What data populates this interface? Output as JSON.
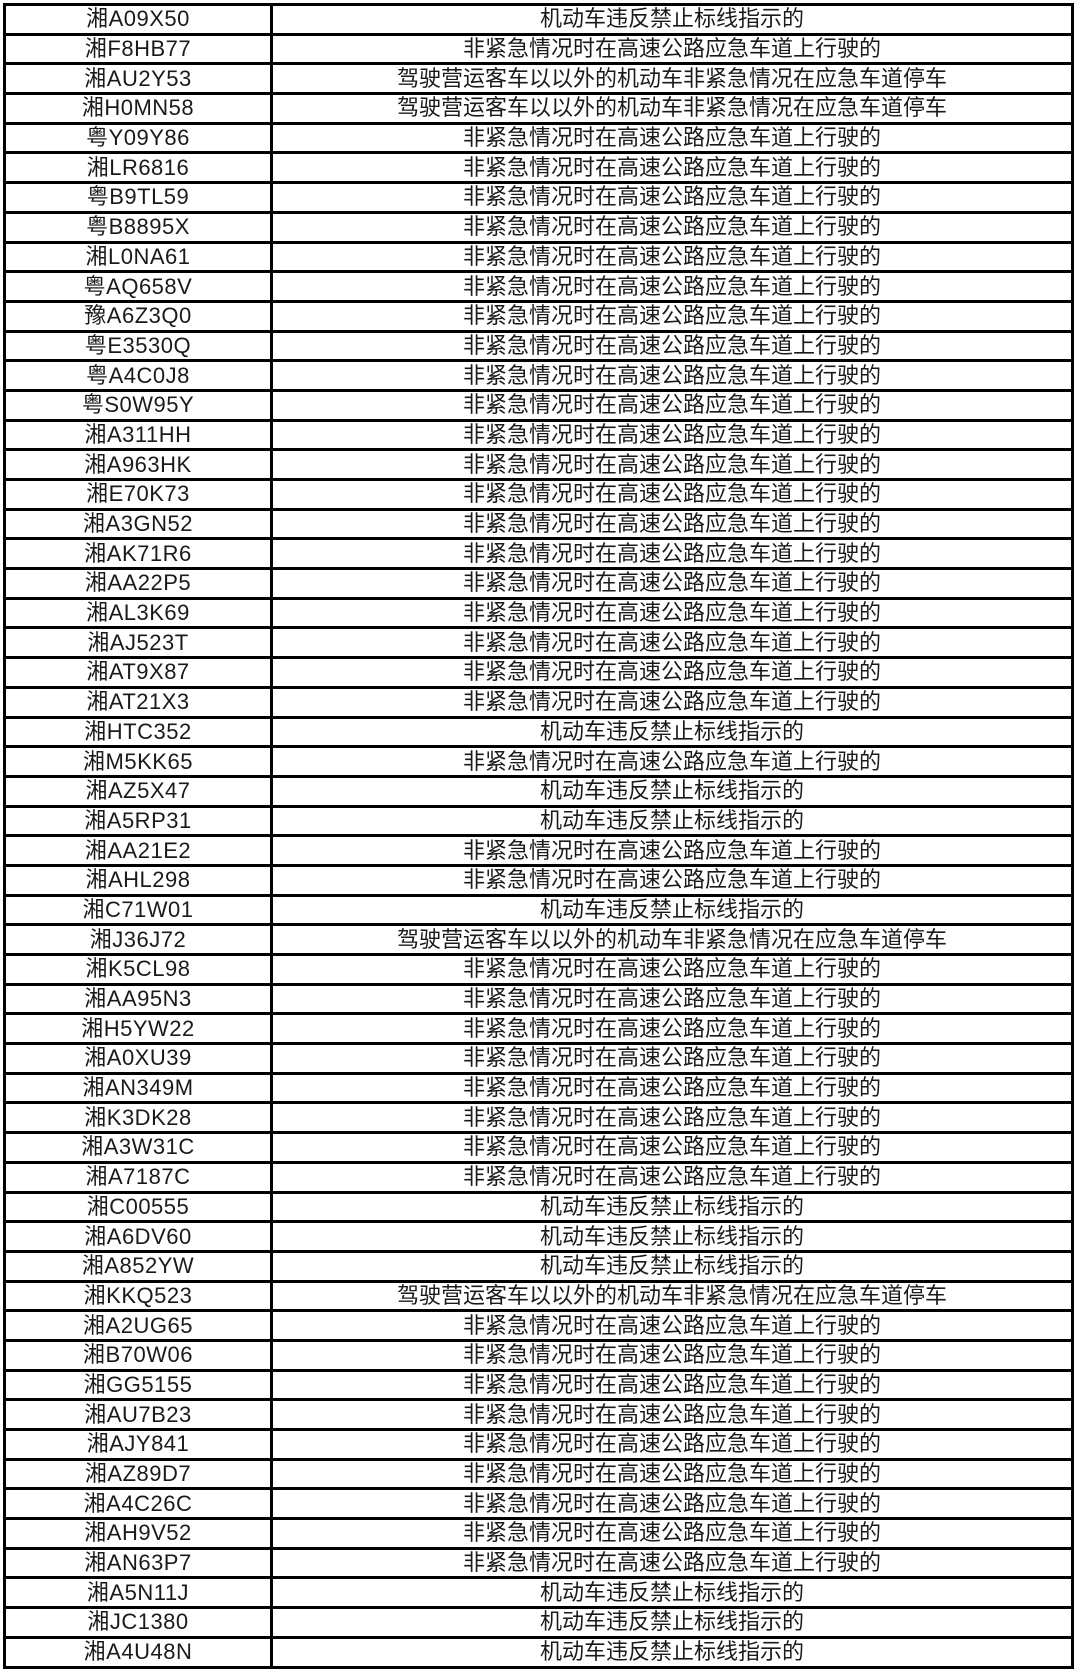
{
  "table": {
    "columns": [
      "plate_number",
      "violation_description"
    ],
    "violation_types": {
      "marking_violation": "机动车违反禁止标线指示的",
      "emergency_lane_driving": "非紧急情况时在高速公路应急车道上行驶的",
      "emergency_lane_parking": "驾驶营运客车以以外的机动车非紧急情况在应急车道停车"
    },
    "rows": [
      {
        "plate": "湘A09X50",
        "violation": "机动车违反禁止标线指示的"
      },
      {
        "plate": "湘F8HB77",
        "violation": "非紧急情况时在高速公路应急车道上行驶的"
      },
      {
        "plate": "湘AU2Y53",
        "violation": "驾驶营运客车以以外的机动车非紧急情况在应急车道停车"
      },
      {
        "plate": "湘H0MN58",
        "violation": "驾驶营运客车以以外的机动车非紧急情况在应急车道停车"
      },
      {
        "plate": "粤Y09Y86",
        "violation": "非紧急情况时在高速公路应急车道上行驶的"
      },
      {
        "plate": "湘LR6816",
        "violation": "非紧急情况时在高速公路应急车道上行驶的"
      },
      {
        "plate": "粤B9TL59",
        "violation": "非紧急情况时在高速公路应急车道上行驶的"
      },
      {
        "plate": "粤B8895X",
        "violation": "非紧急情况时在高速公路应急车道上行驶的"
      },
      {
        "plate": "湘L0NA61",
        "violation": "非紧急情况时在高速公路应急车道上行驶的"
      },
      {
        "plate": "粤AQ658V",
        "violation": "非紧急情况时在高速公路应急车道上行驶的"
      },
      {
        "plate": "豫A6Z3Q0",
        "violation": "非紧急情况时在高速公路应急车道上行驶的"
      },
      {
        "plate": "粤E3530Q",
        "violation": "非紧急情况时在高速公路应急车道上行驶的"
      },
      {
        "plate": "粤A4C0J8",
        "violation": "非紧急情况时在高速公路应急车道上行驶的"
      },
      {
        "plate": "粤S0W95Y",
        "violation": "非紧急情况时在高速公路应急车道上行驶的"
      },
      {
        "plate": "湘A311HH",
        "violation": "非紧急情况时在高速公路应急车道上行驶的"
      },
      {
        "plate": "湘A963HK",
        "violation": "非紧急情况时在高速公路应急车道上行驶的"
      },
      {
        "plate": "湘E70K73",
        "violation": "非紧急情况时在高速公路应急车道上行驶的"
      },
      {
        "plate": "湘A3GN52",
        "violation": "非紧急情况时在高速公路应急车道上行驶的"
      },
      {
        "plate": "湘AK71R6",
        "violation": "非紧急情况时在高速公路应急车道上行驶的"
      },
      {
        "plate": "湘AA22P5",
        "violation": "非紧急情况时在高速公路应急车道上行驶的"
      },
      {
        "plate": "湘AL3K69",
        "violation": "非紧急情况时在高速公路应急车道上行驶的"
      },
      {
        "plate": "湘AJ523T",
        "violation": "非紧急情况时在高速公路应急车道上行驶的"
      },
      {
        "plate": "湘AT9X87",
        "violation": "非紧急情况时在高速公路应急车道上行驶的"
      },
      {
        "plate": "湘AT21X3",
        "violation": "非紧急情况时在高速公路应急车道上行驶的"
      },
      {
        "plate": "湘HTC352",
        "violation": "机动车违反禁止标线指示的"
      },
      {
        "plate": "湘M5KK65",
        "violation": "非紧急情况时在高速公路应急车道上行驶的"
      },
      {
        "plate": "湘AZ5X47",
        "violation": "机动车违反禁止标线指示的"
      },
      {
        "plate": "湘A5RP31",
        "violation": "机动车违反禁止标线指示的"
      },
      {
        "plate": "湘AA21E2",
        "violation": "非紧急情况时在高速公路应急车道上行驶的"
      },
      {
        "plate": "湘AHL298",
        "violation": "非紧急情况时在高速公路应急车道上行驶的"
      },
      {
        "plate": "湘C71W01",
        "violation": "机动车违反禁止标线指示的"
      },
      {
        "plate": "湘J36J72",
        "violation": "驾驶营运客车以以外的机动车非紧急情况在应急车道停车"
      },
      {
        "plate": "湘K5CL98",
        "violation": "非紧急情况时在高速公路应急车道上行驶的"
      },
      {
        "plate": "湘AA95N3",
        "violation": "非紧急情况时在高速公路应急车道上行驶的"
      },
      {
        "plate": "湘H5YW22",
        "violation": "非紧急情况时在高速公路应急车道上行驶的"
      },
      {
        "plate": "湘A0XU39",
        "violation": "非紧急情况时在高速公路应急车道上行驶的"
      },
      {
        "plate": "湘AN349M",
        "violation": "非紧急情况时在高速公路应急车道上行驶的"
      },
      {
        "plate": "湘K3DK28",
        "violation": "非紧急情况时在高速公路应急车道上行驶的"
      },
      {
        "plate": "湘A3W31C",
        "violation": "非紧急情况时在高速公路应急车道上行驶的"
      },
      {
        "plate": "湘A7187C",
        "violation": "非紧急情况时在高速公路应急车道上行驶的"
      },
      {
        "plate": "湘C00555",
        "violation": "机动车违反禁止标线指示的"
      },
      {
        "plate": "湘A6DV60",
        "violation": "机动车违反禁止标线指示的"
      },
      {
        "plate": "湘A852YW",
        "violation": "机动车违反禁止标线指示的"
      },
      {
        "plate": "湘KKQ523",
        "violation": "驾驶营运客车以以外的机动车非紧急情况在应急车道停车"
      },
      {
        "plate": "湘A2UG65",
        "violation": "非紧急情况时在高速公路应急车道上行驶的"
      },
      {
        "plate": "湘B70W06",
        "violation": "非紧急情况时在高速公路应急车道上行驶的"
      },
      {
        "plate": "湘GG5155",
        "violation": "非紧急情况时在高速公路应急车道上行驶的"
      },
      {
        "plate": "湘AU7B23",
        "violation": "非紧急情况时在高速公路应急车道上行驶的"
      },
      {
        "plate": "湘AJY841",
        "violation": "非紧急情况时在高速公路应急车道上行驶的"
      },
      {
        "plate": "湘AZ89D7",
        "violation": "非紧急情况时在高速公路应急车道上行驶的"
      },
      {
        "plate": "湘A4C26C",
        "violation": "非紧急情况时在高速公路应急车道上行驶的"
      },
      {
        "plate": "湘AH9V52",
        "violation": "非紧急情况时在高速公路应急车道上行驶的"
      },
      {
        "plate": "湘AN63P7",
        "violation": "非紧急情况时在高速公路应急车道上行驶的"
      },
      {
        "plate": "湘A5N11J",
        "violation": "机动车违反禁止标线指示的"
      },
      {
        "plate": "湘JC1380",
        "violation": "机动车违反禁止标线指示的"
      },
      {
        "plate": "湘A4U48N",
        "violation": "机动车违反禁止标线指示的"
      }
    ]
  }
}
